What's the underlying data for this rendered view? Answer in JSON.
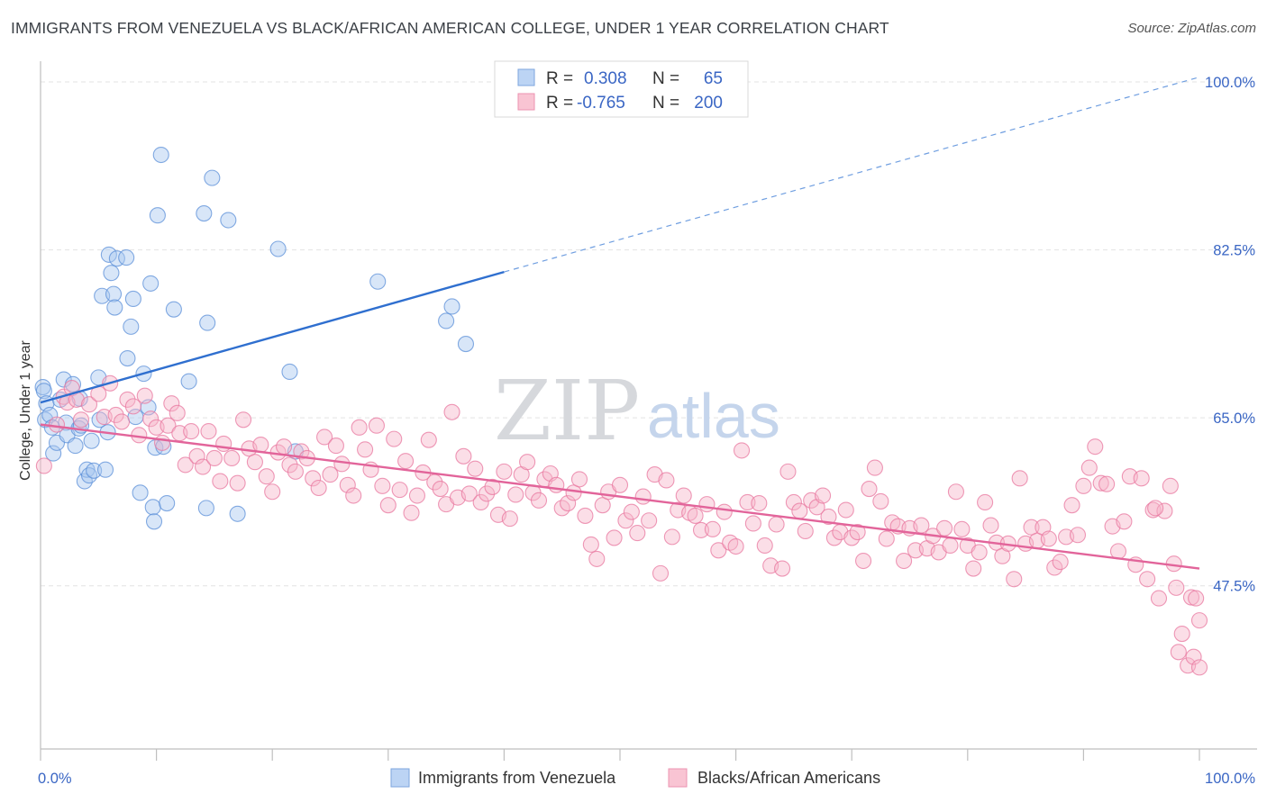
{
  "header": {
    "title": "IMMIGRANTS FROM VENEZUELA VS BLACK/AFRICAN AMERICAN COLLEGE, UNDER 1 YEAR CORRELATION CHART",
    "source": "Source: ZipAtlas.com"
  },
  "watermark": {
    "zip": "ZIP",
    "atlas": "atlas"
  },
  "legend": {
    "rows": [
      {
        "r_label": "R =",
        "r_value": "0.308",
        "n_label": "N =",
        "n_value": "65",
        "color": "#a9c8f0"
      },
      {
        "r_label": "R =",
        "r_value": "-0.765",
        "n_label": "N =",
        "n_value": "200",
        "color": "#f7b6c9"
      }
    ]
  },
  "chart_data": {
    "type": "scatter",
    "title": "IMMIGRANTS FROM VENEZUELA VS BLACK/AFRICAN AMERICAN COLLEGE, UNDER 1 YEAR CORRELATION CHART",
    "xlabel": "",
    "ylabel": "College, Under 1 year",
    "xlim": [
      0,
      100
    ],
    "ylim": [
      30.5,
      101.5
    ],
    "x_tick_labels": [
      "0.0%",
      "100.0%"
    ],
    "y_ticks": [
      47.5,
      65.0,
      82.5,
      100.0
    ],
    "y_tick_labels": [
      "47.5%",
      "65.0%",
      "82.5%",
      "100.0%"
    ],
    "grid": "horizontal dashed",
    "legend_position": "bottom",
    "series": [
      {
        "name": "Immigrants from Venezuela",
        "color": "#5b8fd8",
        "fill": "#a9c8f0",
        "trend": {
          "x0": 0,
          "y0": 66.6,
          "x1": 40,
          "y1": 80.2,
          "dashed_to_x": 100,
          "dashed_to_y": 100.5
        },
        "points": [
          [
            0.2,
            68.2
          ],
          [
            0.3,
            67.8
          ],
          [
            0.4,
            64.8
          ],
          [
            0.5,
            66.5
          ],
          [
            0.8,
            65.3
          ],
          [
            1.0,
            64.0
          ],
          [
            1.1,
            61.3
          ],
          [
            1.4,
            62.4
          ],
          [
            1.7,
            66.9
          ],
          [
            2.0,
            69.0
          ],
          [
            2.2,
            64.5
          ],
          [
            2.3,
            63.2
          ],
          [
            2.8,
            68.5
          ],
          [
            3.0,
            62.1
          ],
          [
            3.3,
            63.9
          ],
          [
            3.4,
            67.0
          ],
          [
            3.5,
            64.2
          ],
          [
            3.8,
            58.4
          ],
          [
            4.0,
            59.6
          ],
          [
            4.2,
            59.0
          ],
          [
            4.4,
            62.6
          ],
          [
            4.6,
            59.5
          ],
          [
            5.0,
            69.2
          ],
          [
            5.1,
            64.8
          ],
          [
            5.3,
            77.7
          ],
          [
            5.6,
            59.6
          ],
          [
            5.8,
            63.5
          ],
          [
            5.9,
            82.0
          ],
          [
            6.1,
            80.1
          ],
          [
            6.3,
            77.9
          ],
          [
            6.4,
            76.5
          ],
          [
            6.6,
            81.6
          ],
          [
            7.4,
            81.7
          ],
          [
            7.5,
            71.2
          ],
          [
            7.8,
            74.5
          ],
          [
            8.0,
            77.4
          ],
          [
            8.2,
            65.1
          ],
          [
            8.6,
            57.2
          ],
          [
            8.9,
            69.6
          ],
          [
            9.3,
            66.1
          ],
          [
            9.5,
            79.0
          ],
          [
            9.7,
            55.7
          ],
          [
            9.8,
            54.2
          ],
          [
            9.9,
            61.9
          ],
          [
            10.1,
            86.1
          ],
          [
            10.4,
            92.4
          ],
          [
            10.6,
            62.0
          ],
          [
            10.9,
            56.1
          ],
          [
            11.5,
            76.3
          ],
          [
            12.8,
            68.8
          ],
          [
            14.1,
            86.3
          ],
          [
            14.3,
            55.6
          ],
          [
            14.4,
            74.9
          ],
          [
            14.8,
            90.0
          ],
          [
            16.2,
            85.6
          ],
          [
            17.0,
            55.0
          ],
          [
            20.5,
            82.6
          ],
          [
            21.5,
            69.8
          ],
          [
            22.0,
            61.5
          ],
          [
            29.1,
            79.2
          ],
          [
            35.0,
            75.1
          ],
          [
            35.5,
            76.6
          ],
          [
            36.7,
            72.7
          ]
        ]
      },
      {
        "name": "Blacks/African Americans",
        "color": "#e8779f",
        "fill": "#f7b6c9",
        "trend": {
          "x0": 0,
          "y0": 64.3,
          "x1": 100,
          "y1": 49.3
        },
        "points": [
          [
            0.3,
            60.0
          ],
          [
            1.4,
            64.3
          ],
          [
            2.0,
            67.2
          ],
          [
            2.3,
            66.6
          ],
          [
            2.7,
            68.1
          ],
          [
            3.1,
            66.9
          ],
          [
            3.5,
            64.8
          ],
          [
            4.2,
            66.4
          ],
          [
            5.0,
            67.5
          ],
          [
            5.5,
            65.1
          ],
          [
            6.0,
            68.6
          ],
          [
            6.5,
            65.3
          ],
          [
            7.0,
            64.6
          ],
          [
            7.5,
            66.9
          ],
          [
            8.0,
            66.2
          ],
          [
            8.5,
            63.2
          ],
          [
            9.0,
            67.3
          ],
          [
            9.5,
            64.9
          ],
          [
            10.0,
            64.0
          ],
          [
            10.5,
            62.4
          ],
          [
            11.0,
            64.2
          ],
          [
            11.3,
            66.5
          ],
          [
            11.8,
            65.5
          ],
          [
            12.0,
            63.4
          ],
          [
            12.5,
            60.1
          ],
          [
            13.0,
            63.6
          ],
          [
            13.5,
            61.0
          ],
          [
            14.0,
            59.9
          ],
          [
            14.5,
            63.6
          ],
          [
            15.0,
            60.8
          ],
          [
            15.5,
            58.4
          ],
          [
            15.8,
            62.3
          ],
          [
            16.5,
            60.8
          ],
          [
            17.0,
            58.2
          ],
          [
            17.5,
            64.8
          ],
          [
            18.0,
            61.8
          ],
          [
            18.5,
            60.4
          ],
          [
            19.0,
            62.2
          ],
          [
            19.5,
            58.9
          ],
          [
            20.0,
            57.3
          ],
          [
            20.5,
            61.4
          ],
          [
            21.0,
            62.0
          ],
          [
            21.5,
            60.1
          ],
          [
            22.0,
            59.4
          ],
          [
            22.5,
            61.5
          ],
          [
            23.0,
            60.8
          ],
          [
            23.5,
            58.7
          ],
          [
            24.0,
            57.7
          ],
          [
            24.5,
            63.0
          ],
          [
            25.0,
            59.1
          ],
          [
            25.5,
            62.1
          ],
          [
            26.0,
            60.2
          ],
          [
            26.5,
            58.0
          ],
          [
            27.0,
            56.9
          ],
          [
            27.5,
            64.0
          ],
          [
            28.0,
            61.7
          ],
          [
            28.5,
            59.6
          ],
          [
            29.0,
            64.2
          ],
          [
            29.5,
            57.9
          ],
          [
            30.0,
            55.9
          ],
          [
            30.5,
            62.8
          ],
          [
            31.0,
            57.5
          ],
          [
            31.5,
            60.5
          ],
          [
            32.0,
            55.1
          ],
          [
            32.5,
            56.9
          ],
          [
            33.0,
            59.3
          ],
          [
            33.5,
            62.7
          ],
          [
            34.0,
            58.3
          ],
          [
            34.5,
            57.6
          ],
          [
            35.0,
            56.0
          ],
          [
            35.5,
            65.6
          ],
          [
            36.0,
            56.7
          ],
          [
            36.5,
            61.0
          ],
          [
            37.0,
            57.1
          ],
          [
            37.5,
            59.7
          ],
          [
            38.0,
            56.2
          ],
          [
            38.5,
            57.1
          ],
          [
            39.0,
            57.8
          ],
          [
            39.5,
            54.9
          ],
          [
            40.0,
            59.4
          ],
          [
            40.5,
            54.5
          ],
          [
            41.0,
            57.0
          ],
          [
            41.5,
            59.1
          ],
          [
            42.0,
            60.4
          ],
          [
            42.5,
            57.2
          ],
          [
            43.0,
            56.4
          ],
          [
            43.5,
            58.6
          ],
          [
            44.0,
            59.2
          ],
          [
            44.5,
            58.0
          ],
          [
            45.0,
            55.6
          ],
          [
            45.5,
            56.1
          ],
          [
            46.0,
            57.2
          ],
          [
            46.5,
            58.6
          ],
          [
            47.0,
            54.8
          ],
          [
            47.5,
            51.8
          ],
          [
            48.0,
            50.3
          ],
          [
            48.5,
            55.9
          ],
          [
            49.0,
            57.3
          ],
          [
            49.5,
            52.5
          ],
          [
            50.0,
            58.0
          ],
          [
            50.5,
            54.3
          ],
          [
            51.0,
            55.2
          ],
          [
            51.5,
            53.0
          ],
          [
            52.0,
            56.8
          ],
          [
            52.5,
            54.3
          ],
          [
            53.0,
            59.1
          ],
          [
            53.5,
            48.8
          ],
          [
            54.0,
            58.5
          ],
          [
            54.5,
            52.6
          ],
          [
            55.0,
            55.4
          ],
          [
            55.5,
            56.9
          ],
          [
            56.0,
            55.1
          ],
          [
            56.5,
            54.8
          ],
          [
            57.0,
            53.3
          ],
          [
            57.5,
            56.0
          ],
          [
            58.0,
            53.4
          ],
          [
            58.5,
            51.2
          ],
          [
            59.0,
            55.2
          ],
          [
            59.5,
            52.0
          ],
          [
            60.0,
            51.6
          ],
          [
            60.5,
            61.6
          ],
          [
            61.0,
            56.2
          ],
          [
            61.5,
            54.0
          ],
          [
            62.0,
            56.1
          ],
          [
            62.5,
            51.7
          ],
          [
            63.0,
            49.6
          ],
          [
            63.5,
            53.9
          ],
          [
            64.0,
            49.3
          ],
          [
            64.5,
            59.4
          ],
          [
            65.0,
            56.2
          ],
          [
            65.5,
            55.3
          ],
          [
            66.0,
            53.2
          ],
          [
            66.5,
            56.4
          ],
          [
            67.0,
            55.7
          ],
          [
            67.5,
            56.9
          ],
          [
            68.0,
            54.7
          ],
          [
            68.5,
            52.5
          ],
          [
            69.0,
            53.1
          ],
          [
            69.5,
            55.4
          ],
          [
            70.0,
            52.5
          ],
          [
            70.5,
            53.1
          ],
          [
            71.0,
            50.1
          ],
          [
            71.5,
            57.6
          ],
          [
            72.0,
            59.8
          ],
          [
            72.5,
            56.3
          ],
          [
            73.0,
            52.4
          ],
          [
            73.5,
            54.1
          ],
          [
            74.0,
            53.7
          ],
          [
            74.5,
            50.1
          ],
          [
            75.0,
            53.5
          ],
          [
            75.5,
            51.2
          ],
          [
            76.0,
            53.8
          ],
          [
            76.5,
            51.4
          ],
          [
            77.0,
            52.7
          ],
          [
            77.5,
            51.0
          ],
          [
            78.0,
            53.5
          ],
          [
            78.5,
            51.7
          ],
          [
            79.0,
            57.3
          ],
          [
            79.5,
            53.4
          ],
          [
            80.0,
            51.7
          ],
          [
            80.5,
            49.3
          ],
          [
            81.0,
            51.0
          ],
          [
            81.5,
            56.2
          ],
          [
            82.0,
            53.8
          ],
          [
            82.5,
            52.0
          ],
          [
            83.0,
            50.6
          ],
          [
            83.5,
            51.9
          ],
          [
            84.0,
            48.2
          ],
          [
            84.5,
            58.7
          ],
          [
            85.0,
            51.9
          ],
          [
            85.5,
            53.6
          ],
          [
            86.0,
            52.2
          ],
          [
            86.5,
            53.6
          ],
          [
            87.0,
            52.4
          ],
          [
            87.5,
            49.4
          ],
          [
            88.0,
            50.0
          ],
          [
            88.5,
            52.6
          ],
          [
            89.0,
            55.9
          ],
          [
            89.5,
            52.8
          ],
          [
            90.0,
            57.9
          ],
          [
            90.5,
            59.8
          ],
          [
            91.0,
            62.0
          ],
          [
            91.5,
            58.2
          ],
          [
            92.0,
            58.1
          ],
          [
            92.5,
            53.7
          ],
          [
            93.0,
            51.1
          ],
          [
            93.5,
            54.2
          ],
          [
            94.0,
            58.9
          ],
          [
            94.5,
            49.7
          ],
          [
            95.0,
            58.7
          ],
          [
            95.5,
            48.2
          ],
          [
            96.0,
            55.4
          ],
          [
            96.5,
            46.2
          ],
          [
            97.0,
            55.3
          ],
          [
            97.5,
            57.9
          ],
          [
            98.0,
            47.3
          ],
          [
            98.5,
            42.5
          ],
          [
            99.0,
            39.2
          ],
          [
            99.5,
            40.1
          ],
          [
            100.0,
            39.0
          ],
          [
            98.2,
            40.6
          ],
          [
            97.8,
            49.8
          ],
          [
            99.3,
            46.3
          ],
          [
            99.7,
            46.2
          ],
          [
            100.0,
            43.9
          ],
          [
            96.2,
            55.6
          ]
        ]
      }
    ]
  }
}
